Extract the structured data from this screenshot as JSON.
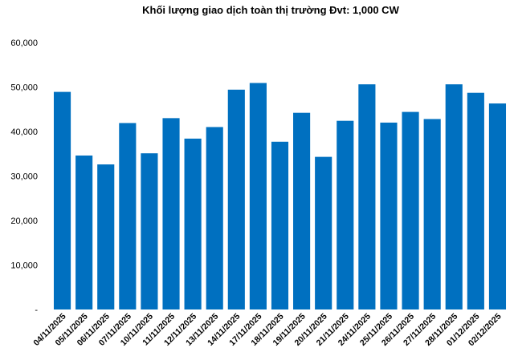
{
  "chart_data": {
    "type": "bar",
    "title": "Khối lượng giao dịch toàn thị trường Đvt: 1,000 CW",
    "xlabel": "",
    "ylabel": "",
    "ylim": [
      0,
      60000
    ],
    "yticks": [
      0,
      10000,
      20000,
      30000,
      40000,
      50000,
      60000
    ],
    "ytick_labels": [
      "-",
      "10,000",
      "20,000",
      "30,000",
      "40,000",
      "50,000",
      "60,000"
    ],
    "grid": false,
    "legend": "none",
    "bar_color": "#0070C0",
    "categories": [
      "04/11/2025",
      "05/11/2025",
      "06/11/2025",
      "07/11/2025",
      "10/11/2025",
      "11/11/2025",
      "12/11/2025",
      "13/11/2025",
      "14/11/2025",
      "17/11/2025",
      "18/11/2025",
      "19/11/2025",
      "20/11/2025",
      "21/11/2025",
      "24/11/2025",
      "25/11/2025",
      "26/11/2025",
      "27/11/2025",
      "28/11/2025",
      "01/12/2025",
      "02/12/2025"
    ],
    "values": [
      48900,
      34600,
      32600,
      41900,
      35100,
      43000,
      38400,
      41000,
      49400,
      50900,
      37700,
      44200,
      34300,
      42400,
      50600,
      42000,
      44400,
      42800,
      50600,
      48700,
      46300
    ]
  }
}
